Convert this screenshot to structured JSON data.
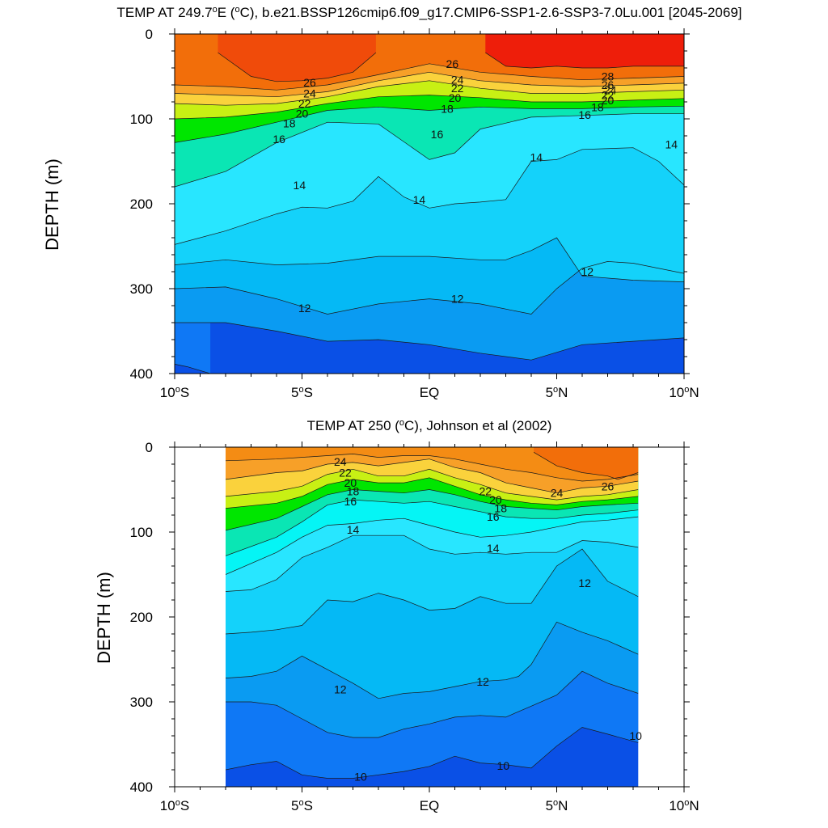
{
  "chart_data": [
    {
      "type": "contour",
      "title": "TEMP AT 249.7",
      "title_unit": "E (",
      "title_tail": "C), b.e21.BSSP126cmip6.f09_g17.CMIP6-SSP1-2.6-SSP3-7.0Lu.001 [2045-2069]",
      "ylabel": "DEPTH (m)",
      "xlim": [
        -10,
        10
      ],
      "ylim": [
        400,
        0
      ],
      "data_x_range": [
        -10,
        10
      ],
      "x_ticks": [
        {
          "value": -10,
          "num": "10",
          "hemi": "S"
        },
        {
          "value": -5,
          "num": "5",
          "hemi": "S"
        },
        {
          "value": 0,
          "num": "EQ",
          "hemi": ""
        },
        {
          "value": 5,
          "num": "5",
          "hemi": "N"
        },
        {
          "value": 10,
          "num": "10",
          "hemi": "N"
        }
      ],
      "y_ticks": [
        0,
        100,
        200,
        300,
        400
      ],
      "isotherms": [
        {
          "level": 28,
          "x": [
            2.2,
            3,
            4,
            5,
            6,
            7,
            8,
            9,
            10
          ],
          "y": [
            22,
            38,
            40,
            38,
            40,
            40,
            38,
            38,
            38
          ]
        },
        {
          "level": 27,
          "x": [
            -8.3,
            -7,
            -6,
            -5,
            -4,
            -3,
            -2.1
          ],
          "y": [
            22,
            50,
            56,
            55,
            52,
            45,
            22
          ]
        },
        {
          "level": 26,
          "x": [
            -10,
            -8,
            -6,
            -4,
            -2,
            0,
            2,
            4,
            6,
            8,
            10
          ],
          "y": [
            60,
            62,
            66,
            60,
            48,
            35,
            45,
            50,
            54,
            52,
            50
          ]
        },
        {
          "level": 24,
          "x": [
            -10,
            -8,
            -6,
            -4,
            -2,
            0,
            2,
            4,
            6,
            8,
            10
          ],
          "y": [
            70,
            72,
            74,
            68,
            55,
            45,
            55,
            60,
            62,
            60,
            58
          ]
        },
        {
          "level": 22,
          "x": [
            -10,
            -8,
            -6,
            -4,
            -2,
            0,
            2,
            4,
            6,
            8,
            10
          ],
          "y": [
            82,
            84,
            82,
            74,
            62,
            55,
            64,
            70,
            70,
            68,
            66
          ]
        },
        {
          "level": 20,
          "x": [
            -10,
            -8,
            -6,
            -4,
            -2,
            0,
            2,
            4,
            6,
            8,
            10
          ],
          "y": [
            100,
            98,
            92,
            82,
            74,
            72,
            75,
            80,
            80,
            78,
            76
          ]
        },
        {
          "level": 18,
          "x": [
            -10,
            -8,
            -6,
            -4,
            -2,
            0,
            2,
            4,
            6,
            8,
            10
          ],
          "y": [
            128,
            118,
            104,
            90,
            86,
            90,
            86,
            88,
            88,
            86,
            85
          ]
        },
        {
          "level": 16,
          "x": [
            -10,
            -8,
            -6,
            -4,
            -2,
            0,
            1,
            2,
            4,
            6,
            8,
            10
          ],
          "y": [
            180,
            162,
            128,
            104,
            106,
            148,
            140,
            112,
            98,
            96,
            94,
            94
          ]
        },
        {
          "level": 14,
          "x": [
            -10,
            -8,
            -6,
            -5,
            -4,
            -3,
            -2,
            -1,
            0,
            1,
            2,
            3,
            4,
            5,
            6,
            8,
            9,
            10
          ],
          "y": [
            248,
            232,
            212,
            204,
            205,
            197,
            168,
            192,
            205,
            200,
            198,
            195,
            150,
            148,
            136,
            134,
            150,
            178
          ]
        },
        {
          "level": 13,
          "x": [
            -10,
            -8,
            -6,
            -4,
            -2,
            0,
            2,
            3,
            4,
            5,
            6,
            8,
            10
          ],
          "y": [
            272,
            266,
            272,
            270,
            262,
            262,
            266,
            266,
            255,
            240,
            285,
            290,
            292
          ]
        },
        {
          "level": 12,
          "x": [
            -10,
            -8,
            -6,
            -4,
            -2,
            0,
            2,
            4,
            5,
            6,
            7,
            8,
            10
          ],
          "y": [
            300,
            298,
            312,
            330,
            318,
            312,
            318,
            330,
            300,
            276,
            268,
            270,
            282
          ]
        },
        {
          "level": 11,
          "x": [
            -10,
            -8,
            -6,
            -4,
            -2,
            0,
            2,
            4,
            6,
            8,
            10
          ],
          "y": [
            340,
            340,
            350,
            362,
            360,
            366,
            376,
            384,
            366,
            362,
            358
          ]
        },
        {
          "level": 10,
          "x": [
            -10,
            -9.5,
            -8.6
          ],
          "y": [
            389,
            392,
            400
          ]
        }
      ],
      "line_labels": [
        {
          "text": "28",
          "x": 7.0,
          "y": 50
        },
        {
          "text": "26",
          "x": 7.0,
          "y": 60
        },
        {
          "text": "24",
          "x": 7.1,
          "y": 66
        },
        {
          "text": "22",
          "x": 7.0,
          "y": 72
        },
        {
          "text": "20",
          "x": 7.0,
          "y": 78
        },
        {
          "text": "18",
          "x": 6.6,
          "y": 86
        },
        {
          "text": "16",
          "x": 6.1,
          "y": 95
        },
        {
          "text": "14",
          "x": 9.5,
          "y": 130
        },
        {
          "text": "14",
          "x": 4.2,
          "y": 145
        },
        {
          "text": "12",
          "x": 6.2,
          "y": 280
        },
        {
          "text": "26",
          "x": -4.7,
          "y": 57
        },
        {
          "text": "24",
          "x": -4.7,
          "y": 70
        },
        {
          "text": "22",
          "x": -4.9,
          "y": 82
        },
        {
          "text": "20",
          "x": -5.0,
          "y": 94
        },
        {
          "text": "18",
          "x": -5.5,
          "y": 105
        },
        {
          "text": "16",
          "x": -5.9,
          "y": 124
        },
        {
          "text": "26",
          "x": 0.9,
          "y": 35
        },
        {
          "text": "24",
          "x": 1.1,
          "y": 54
        },
        {
          "text": "22",
          "x": 1.1,
          "y": 64
        },
        {
          "text": "20",
          "x": 1.0,
          "y": 75
        },
        {
          "text": "18",
          "x": 0.7,
          "y": 88
        },
        {
          "text": "16",
          "x": 0.3,
          "y": 118
        },
        {
          "text": "14",
          "x": -5.1,
          "y": 178
        },
        {
          "text": "14",
          "x": -0.4,
          "y": 195
        },
        {
          "text": "12",
          "x": -4.9,
          "y": 323
        },
        {
          "text": "12",
          "x": 1.1,
          "y": 312
        }
      ]
    },
    {
      "type": "contour",
      "title": "TEMP AT 250 (",
      "title_tail": "C), Johnson et al (2002)",
      "ylabel": "DEPTH (m)",
      "xlim": [
        -10,
        10
      ],
      "ylim": [
        400,
        0
      ],
      "data_x_range": [
        -8,
        8.2
      ],
      "x_ticks": [
        {
          "value": -10,
          "num": "10",
          "hemi": "S"
        },
        {
          "value": -5,
          "num": "5",
          "hemi": "S"
        },
        {
          "value": 0,
          "num": "EQ",
          "hemi": ""
        },
        {
          "value": 5,
          "num": "5",
          "hemi": "N"
        },
        {
          "value": 10,
          "num": "10",
          "hemi": "N"
        }
      ],
      "y_ticks": [
        0,
        100,
        200,
        300,
        400
      ],
      "isotherms": [
        {
          "level": 26,
          "x": [
            4.1,
            5,
            6,
            7,
            7.4,
            8.2
          ],
          "y": [
            6,
            22,
            30,
            34,
            38,
            30
          ]
        },
        {
          "level": 25,
          "x": [
            -8,
            -6,
            -4,
            -3,
            -2,
            -1,
            0,
            1,
            2,
            3,
            4,
            5,
            6,
            7,
            8.2
          ],
          "y": [
            16,
            14,
            10,
            8,
            12,
            10,
            10,
            14,
            20,
            26,
            30,
            36,
            40,
            38,
            32
          ]
        },
        {
          "level": 24,
          "x": [
            -8,
            -6,
            -5,
            -4,
            -3,
            -2,
            -1,
            0,
            1,
            2,
            3,
            4,
            5,
            6,
            7,
            8.2
          ],
          "y": [
            38,
            30,
            28,
            20,
            18,
            22,
            18,
            14,
            24,
            30,
            42,
            48,
            54,
            48,
            46,
            40
          ]
        },
        {
          "level": 22,
          "x": [
            -8,
            -6,
            -5,
            -4,
            -3,
            -2,
            -1,
            0,
            1,
            2,
            3,
            4,
            5,
            6,
            7,
            8.2
          ],
          "y": [
            58,
            52,
            46,
            32,
            26,
            34,
            34,
            26,
            36,
            44,
            54,
            58,
            62,
            58,
            56,
            50
          ]
        },
        {
          "level": 20,
          "x": [
            -8,
            -6,
            -5,
            -4,
            -3,
            -2,
            -1,
            0,
            1,
            2,
            3,
            4,
            5,
            6,
            7,
            8.2
          ],
          "y": [
            72,
            66,
            58,
            44,
            38,
            42,
            42,
            36,
            46,
            56,
            62,
            66,
            68,
            64,
            62,
            58
          ]
        },
        {
          "level": 18,
          "x": [
            -8,
            -6,
            -5,
            -4,
            -3,
            -2,
            -1,
            0,
            1,
            2,
            3,
            4,
            5,
            6,
            7,
            8.2
          ],
          "y": [
            98,
            84,
            70,
            56,
            50,
            52,
            54,
            50,
            56,
            64,
            70,
            72,
            74,
            70,
            68,
            66
          ]
        },
        {
          "level": 16,
          "x": [
            -8,
            -6,
            -5,
            -4,
            -3,
            -2,
            -1,
            0,
            1,
            2,
            3,
            4,
            5,
            6,
            7,
            8.2
          ],
          "y": [
            128,
            106,
            88,
            68,
            62,
            64,
            66,
            64,
            70,
            76,
            82,
            84,
            84,
            80,
            78,
            74
          ]
        },
        {
          "level": 15,
          "x": [
            -8,
            -6,
            -5,
            -4,
            -3,
            -2,
            -1,
            0,
            1,
            2,
            3,
            4,
            5,
            6,
            7,
            8.2
          ],
          "y": [
            150,
            124,
            106,
            92,
            90,
            86,
            84,
            92,
            100,
            106,
            104,
            100,
            94,
            88,
            86,
            82
          ]
        },
        {
          "level": 14,
          "x": [
            -8,
            -7,
            -6,
            -5,
            -4,
            -3,
            -2,
            -1,
            0,
            1,
            2,
            3,
            4,
            5,
            6,
            7,
            8.2
          ],
          "y": [
            170,
            168,
            156,
            130,
            118,
            104,
            104,
            104,
            120,
            126,
            124,
            126,
            124,
            124,
            110,
            112,
            118
          ]
        },
        {
          "level": 13,
          "x": [
            -8,
            -7,
            -6,
            -5,
            -4,
            -3,
            -2,
            -1,
            0,
            1,
            2,
            3,
            4,
            5,
            6,
            7,
            8.2
          ],
          "y": [
            220,
            218,
            215,
            210,
            180,
            182,
            172,
            180,
            192,
            190,
            176,
            184,
            184,
            140,
            120,
            158,
            176
          ]
        },
        {
          "level": 12,
          "x": [
            -8,
            -7,
            -6,
            -5,
            -4,
            -3,
            -2,
            -1,
            0,
            1,
            2,
            3,
            3.5,
            4,
            5,
            6,
            7,
            8.2
          ],
          "y": [
            272,
            270,
            264,
            246,
            262,
            278,
            296,
            290,
            288,
            282,
            276,
            274,
            270,
            256,
            206,
            218,
            228,
            244
          ]
        },
        {
          "level": 11,
          "x": [
            -8,
            -7,
            -6,
            -5,
            -4,
            -3,
            -2,
            -1,
            0,
            1,
            2,
            3,
            4,
            5,
            6,
            7,
            8.2
          ],
          "y": [
            300,
            300,
            304,
            320,
            336,
            342,
            342,
            332,
            326,
            318,
            316,
            318,
            305,
            292,
            264,
            278,
            290
          ]
        },
        {
          "level": 10,
          "x": [
            -8,
            -7,
            -6,
            -5,
            -4,
            -3,
            -2,
            -1,
            0,
            1,
            2,
            3,
            4,
            5,
            6,
            7,
            8.2
          ],
          "y": [
            380,
            374,
            370,
            386,
            390,
            390,
            386,
            382,
            376,
            364,
            372,
            374,
            378,
            352,
            330,
            338,
            348
          ]
        }
      ],
      "line_labels": [
        {
          "text": "24",
          "x": -3.5,
          "y": 17
        },
        {
          "text": "22",
          "x": -3.3,
          "y": 30
        },
        {
          "text": "20",
          "x": -3.1,
          "y": 42
        },
        {
          "text": "18",
          "x": -3.0,
          "y": 52
        },
        {
          "text": "16",
          "x": -3.1,
          "y": 64
        },
        {
          "text": "14",
          "x": -3.0,
          "y": 97
        },
        {
          "text": "22",
          "x": 2.2,
          "y": 52
        },
        {
          "text": "20",
          "x": 2.6,
          "y": 62
        },
        {
          "text": "18",
          "x": 2.8,
          "y": 72
        },
        {
          "text": "16",
          "x": 2.5,
          "y": 82
        },
        {
          "text": "14",
          "x": 2.5,
          "y": 119
        },
        {
          "text": "24",
          "x": 5.0,
          "y": 54
        },
        {
          "text": "26",
          "x": 7.0,
          "y": 46
        },
        {
          "text": "12",
          "x": 6.1,
          "y": 160
        },
        {
          "text": "10",
          "x": 8.1,
          "y": 340
        },
        {
          "text": "12",
          "x": -3.5,
          "y": 285
        },
        {
          "text": "12",
          "x": 2.1,
          "y": 276
        },
        {
          "text": "10",
          "x": -2.7,
          "y": 388
        },
        {
          "text": "10",
          "x": 2.9,
          "y": 375
        }
      ]
    }
  ],
  "colors": {
    "palette": [
      "#0a50e6",
      "#0f78f5",
      "#0a9bf2",
      "#05b9f5",
      "#14d2fa",
      "#28e6ff",
      "#05f5f5",
      "#0ae6b4",
      "#00d750",
      "#00e600",
      "#7ef000",
      "#c8f014",
      "#f5f01e",
      "#fad23c",
      "#f7b03a",
      "#f7a028",
      "#f48c14",
      "#f26e0a",
      "#f04b0a",
      "#ee1e0a",
      "#d80808"
    ],
    "palette_min_level": 9
  }
}
